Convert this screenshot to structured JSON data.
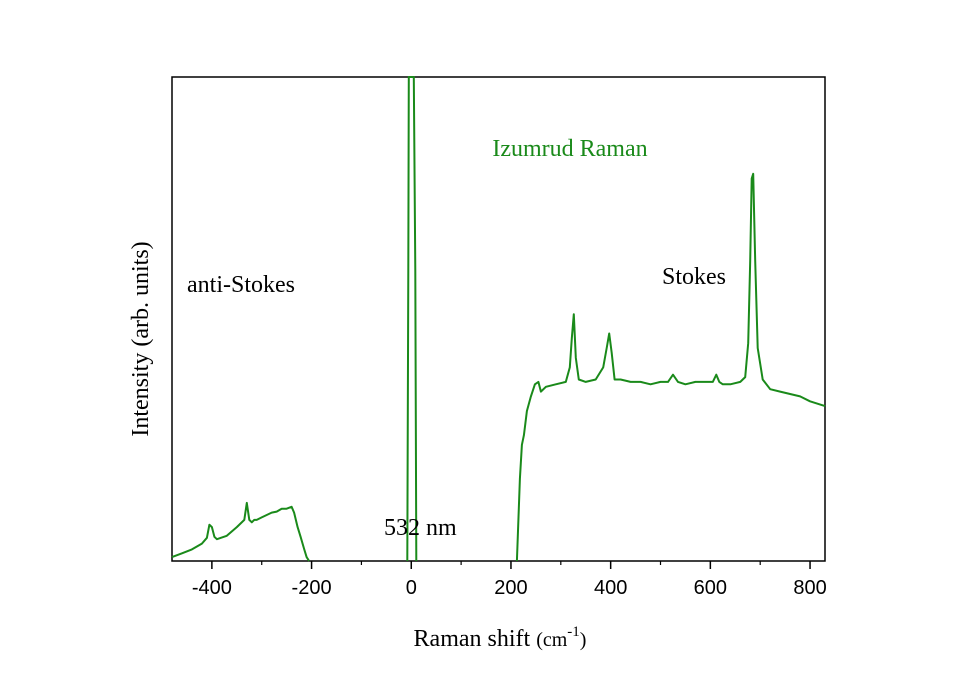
{
  "chart_data": {
    "type": "line",
    "title": "Izumrud Raman",
    "xlabel_main": "Raman shift ",
    "xlabel_unit": "(cm",
    "xlabel_exp": "-1",
    "xlabel_close": ")",
    "ylabel": "Intensity (arb. units)",
    "xlim": [
      -480,
      830
    ],
    "ylim": [
      0,
      1
    ],
    "xticks": [
      -400,
      -200,
      0,
      200,
      400,
      600,
      800
    ],
    "xtick_labels": [
      "-400",
      "-200",
      "0",
      "200",
      "400",
      "600",
      "800"
    ],
    "grid": false,
    "annotations": {
      "anti_stokes": "anti-Stokes",
      "stokes": "Stokes",
      "laser": "532 nm"
    },
    "colors": {
      "series": "#1a8a1a",
      "title": "#1a8a1a",
      "axis": "#000000"
    },
    "series": [
      {
        "segment": "anti-Stokes",
        "x": [
          -480,
          -460,
          -440,
          -420,
          -410,
          -405,
          -400,
          -395,
          -390,
          -370,
          -350,
          -335,
          -330,
          -325,
          -320,
          -315,
          -310,
          -300,
          -290,
          -280,
          -270,
          -260,
          -250,
          -240,
          -235,
          -228,
          -222,
          -215,
          -210,
          -205
        ],
        "y": [
          0.008,
          0.016,
          0.024,
          0.036,
          0.048,
          0.075,
          0.07,
          0.05,
          0.045,
          0.052,
          0.07,
          0.085,
          0.12,
          0.085,
          0.08,
          0.085,
          0.085,
          0.09,
          0.095,
          0.1,
          0.102,
          0.108,
          0.108,
          0.112,
          0.1,
          0.07,
          0.05,
          0.025,
          0.008,
          0
        ]
      },
      {
        "segment": "laser line",
        "x": [
          -8,
          -6,
          -5,
          0,
          5,
          8,
          10
        ],
        "y": [
          0,
          0.6,
          1,
          1,
          1,
          0.6,
          0
        ]
      },
      {
        "segment": "Stokes",
        "x": [
          212,
          218,
          222,
          226,
          232,
          240,
          248,
          255,
          260,
          270,
          290,
          310,
          318,
          322,
          326,
          330,
          336,
          350,
          370,
          385,
          392,
          397,
          402,
          408,
          420,
          440,
          460,
          480,
          500,
          515,
          525,
          535,
          550,
          570,
          590,
          605,
          612,
          618,
          625,
          640,
          660,
          670,
          676,
          680,
          683,
          686,
          690,
          695,
          705,
          720,
          740,
          760,
          780,
          800,
          815,
          830
        ],
        "y": [
          0,
          0.17,
          0.24,
          0.26,
          0.31,
          0.34,
          0.365,
          0.37,
          0.35,
          0.36,
          0.365,
          0.37,
          0.4,
          0.46,
          0.51,
          0.42,
          0.375,
          0.37,
          0.375,
          0.4,
          0.44,
          0.47,
          0.43,
          0.375,
          0.375,
          0.37,
          0.37,
          0.365,
          0.37,
          0.37,
          0.385,
          0.37,
          0.365,
          0.37,
          0.37,
          0.37,
          0.385,
          0.37,
          0.365,
          0.365,
          0.37,
          0.38,
          0.45,
          0.62,
          0.79,
          0.8,
          0.62,
          0.44,
          0.375,
          0.355,
          0.35,
          0.345,
          0.34,
          0.33,
          0.325,
          0.32
        ]
      }
    ]
  }
}
